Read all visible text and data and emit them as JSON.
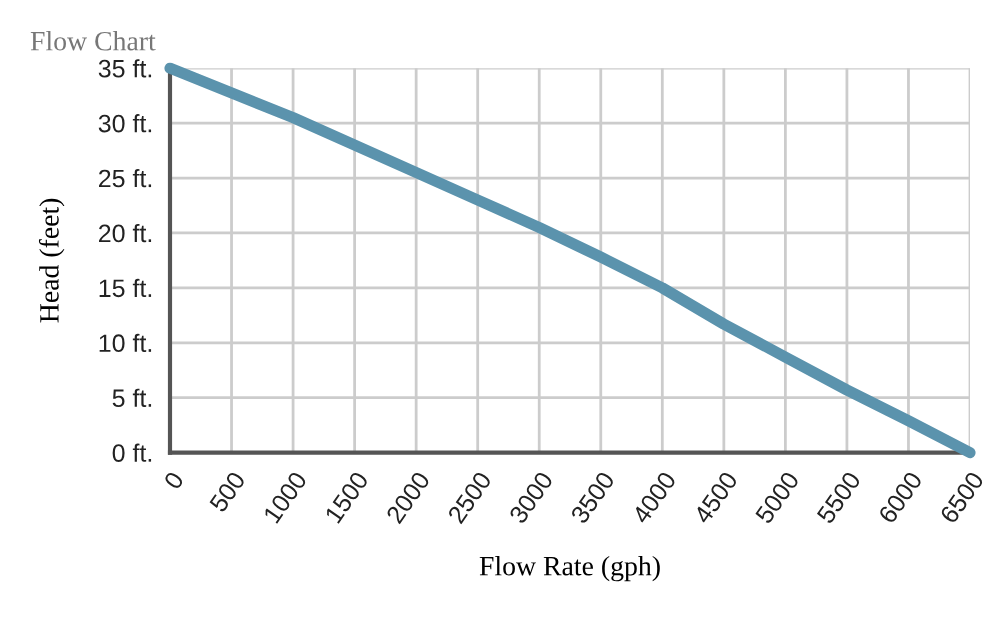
{
  "chart_data": {
    "type": "line",
    "title": "Flow Chart",
    "xlabel": "Flow Rate (gph)",
    "ylabel": "Head (feet)",
    "x": [
      0,
      1000,
      2000,
      2500,
      3000,
      3500,
      4000,
      4500,
      5000,
      5500,
      6000,
      6500
    ],
    "series": [
      {
        "color": "#5b93ad",
        "values": [
          35,
          30.5,
          25.5,
          23,
          20.5,
          17.8,
          15,
          11.7,
          8.7,
          5.7,
          2.9,
          0
        ]
      }
    ],
    "xlim": [
      0,
      6500
    ],
    "xticks": [
      0,
      500,
      1000,
      1500,
      2000,
      2500,
      3000,
      3500,
      4000,
      4500,
      5000,
      5500,
      6000,
      6500
    ],
    "ylim": [
      0,
      35
    ],
    "yticks": [
      {
        "value": 0,
        "label": "0 ft."
      },
      {
        "value": 5,
        "label": "5 ft."
      },
      {
        "value": 10,
        "label": "10 ft."
      },
      {
        "value": 15,
        "label": "15 ft."
      },
      {
        "value": 20,
        "label": "20 ft."
      },
      {
        "value": 25,
        "label": "25 ft."
      },
      {
        "value": 30,
        "label": "30 ft."
      },
      {
        "value": 35,
        "label": "35 ft."
      }
    ],
    "grid": true,
    "legend": false,
    "marker": "none",
    "line_style": "solid"
  }
}
